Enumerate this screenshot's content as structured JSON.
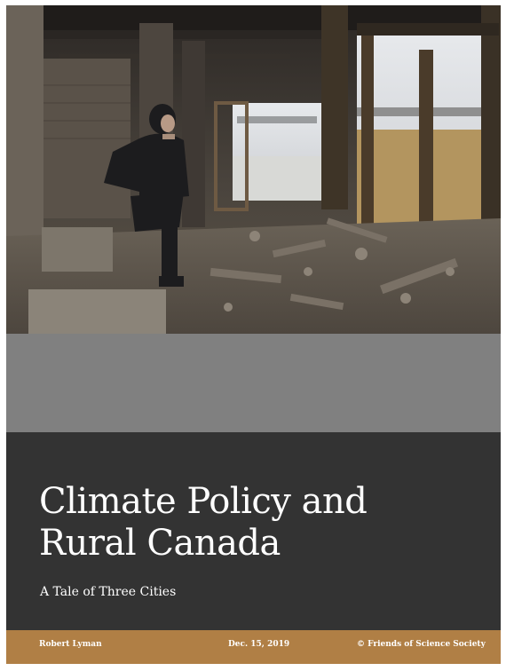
{
  "cover": {
    "title_line1": "Climate Policy and",
    "title_line2": "Rural Canada",
    "subtitle": "A Tale of Three Cities"
  },
  "footer": {
    "author": "Robert Lyman",
    "date": "Dec. 15, 2019",
    "organization": "© Friends of Science Society"
  },
  "colors": {
    "photo_band": "#3a3530",
    "grey_band": "#808080",
    "title_background": "#333333",
    "footer_background": "#b07f45",
    "text": "#ffffff"
  }
}
